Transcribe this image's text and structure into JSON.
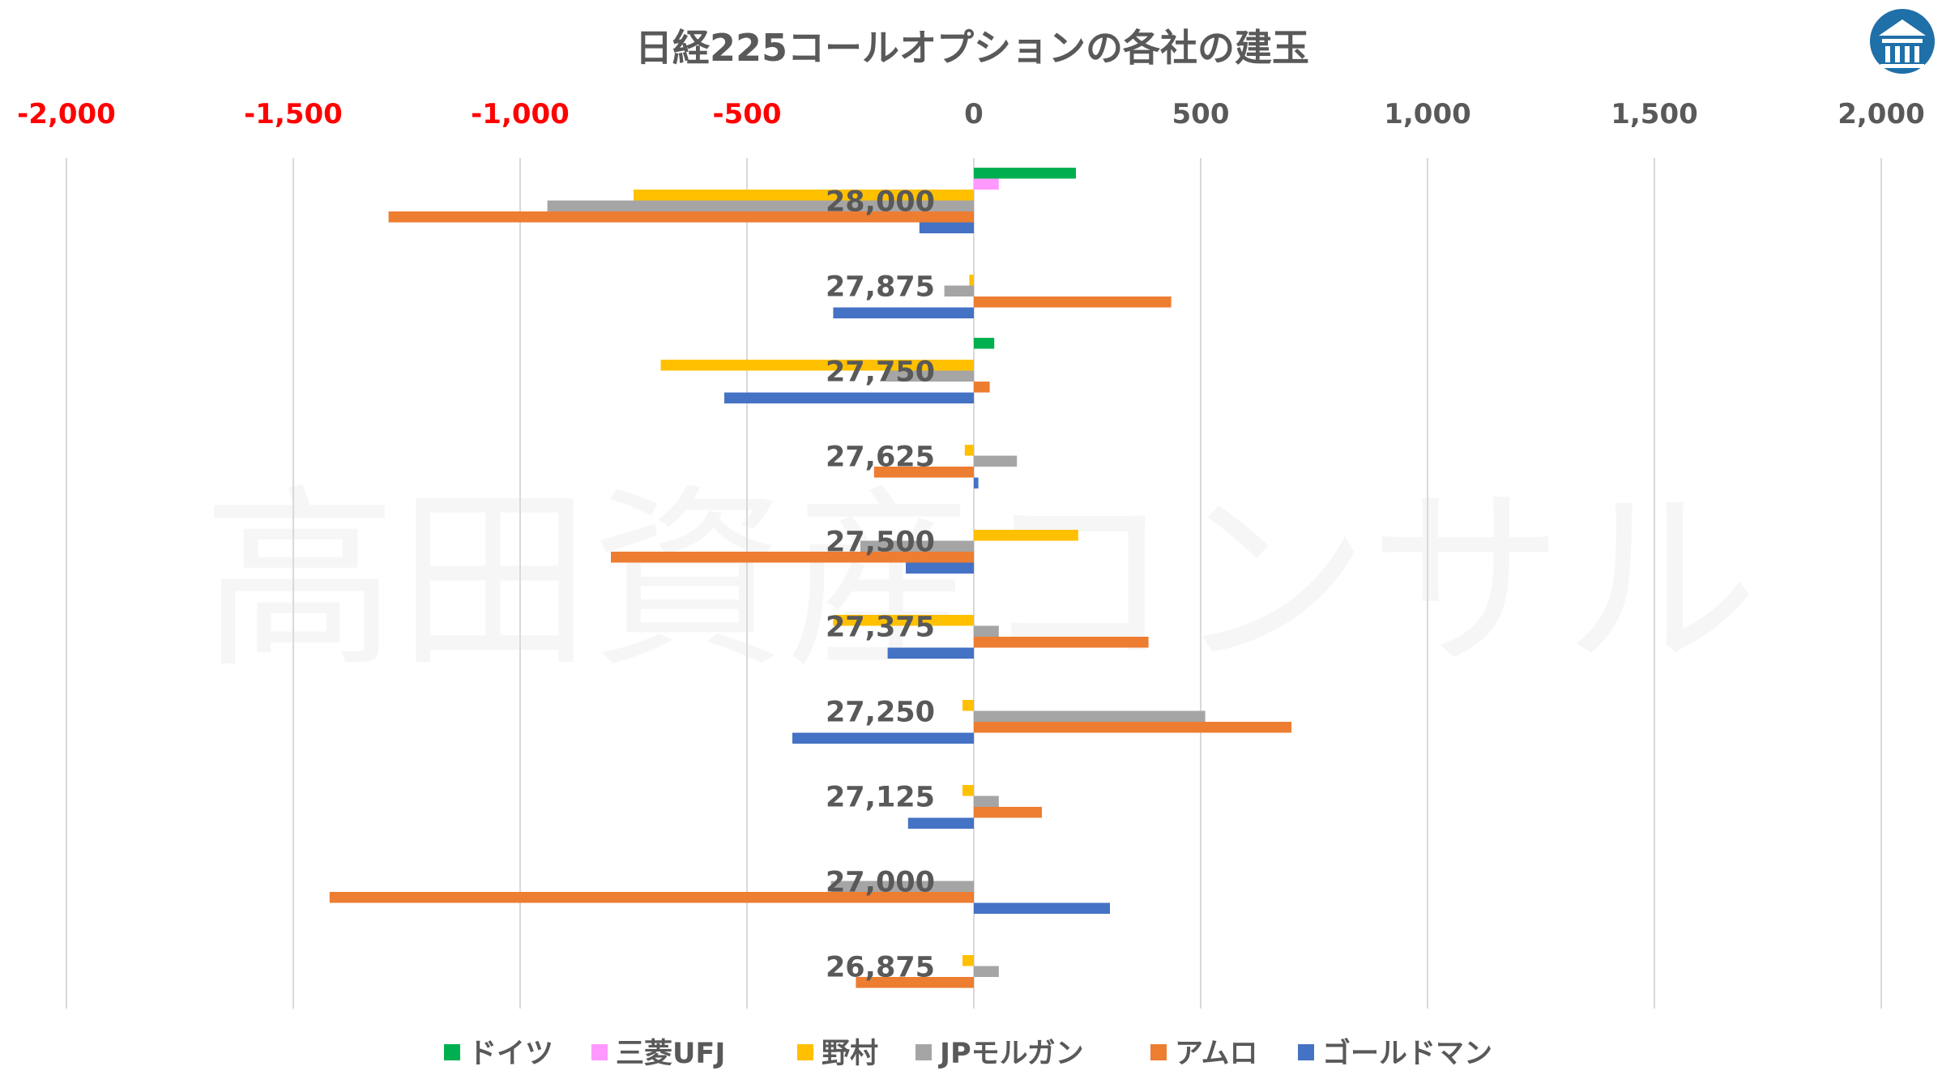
{
  "chart_data": {
    "type": "bar",
    "orientation": "horizontal",
    "title": "日経225コールオプションの各社の建玉",
    "xlim": [
      -2000,
      2000
    ],
    "xticks": [
      -2000,
      -1500,
      -1000,
      -500,
      0,
      500,
      1000,
      1500,
      2000
    ],
    "xtick_labels": [
      "-2,000",
      "-1,500",
      "-1,000",
      "-500",
      "0",
      "500",
      "1,000",
      "1,500",
      "2,000"
    ],
    "negative_tick_color": "#FF0000",
    "positive_tick_color": "#595959",
    "axis_position": "top",
    "grid": true,
    "legend_position": "bottom",
    "categories": [
      "28,000",
      "27,875",
      "27,750",
      "27,625",
      "27,500",
      "27,375",
      "27,250",
      "27,125",
      "27,000",
      "26,875"
    ],
    "series": [
      {
        "name": "ドイツ",
        "color": "#00B050",
        "values": [
          225,
          0,
          45,
          0,
          0,
          0,
          0,
          0,
          0,
          0
        ]
      },
      {
        "name": "三菱UFJ",
        "color": "#FF99FF",
        "values": [
          55,
          0,
          0,
          0,
          0,
          0,
          0,
          0,
          0,
          0
        ]
      },
      {
        "name": "野村",
        "color": "#FFC000",
        "values": [
          -750,
          -10,
          -690,
          -20,
          230,
          -310,
          -25,
          -25,
          0,
          -25
        ]
      },
      {
        "name": "JPモルガン",
        "color": "#A5A5A5",
        "values": [
          -940,
          -65,
          -195,
          95,
          -250,
          55,
          510,
          55,
          -315,
          55
        ]
      },
      {
        "name": "アムロ",
        "color": "#ED7D31",
        "values": [
          -1290,
          435,
          35,
          -220,
          -800,
          385,
          700,
          150,
          -1420,
          -260
        ]
      },
      {
        "name": "ゴールドマン",
        "color": "#4472C4",
        "values": [
          -120,
          -310,
          -550,
          10,
          -150,
          -190,
          -400,
          -145,
          300,
          0
        ]
      }
    ]
  },
  "watermark": "高田資産コンサル",
  "logo": {
    "icon": "building-logo-icon",
    "color": "#1F6FA8"
  }
}
